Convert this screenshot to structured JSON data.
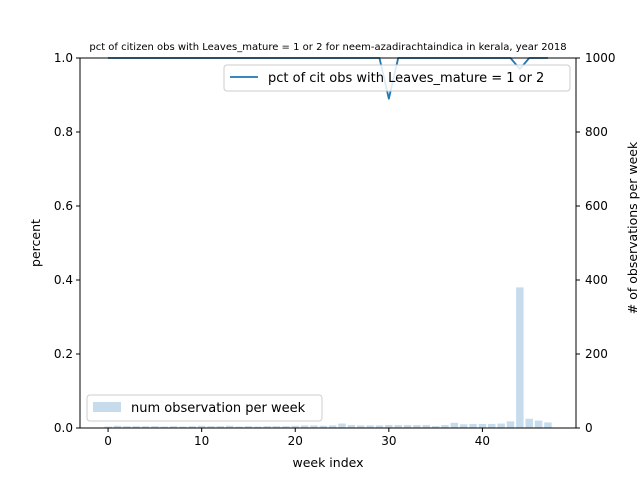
{
  "chart_data": {
    "type": "bar",
    "title": "pct of citizen obs with Leaves_mature = 1 or 2 for neem-azadirachtaindica in kerala, year 2018",
    "xlabel": "week index",
    "ylabel_left": "percent",
    "ylabel_right": "# of observations per week",
    "xlim": [
      -3,
      50
    ],
    "ylim_left": [
      0,
      1
    ],
    "ylim_right": [
      0,
      1000
    ],
    "x_ticks": [
      "0",
      "10",
      "20",
      "30",
      "40"
    ],
    "y_left_ticks": [
      "0.0",
      "0.2",
      "0.4",
      "0.6",
      "0.8",
      "1.0"
    ],
    "y_right_ticks": [
      "0",
      "200",
      "400",
      "600",
      "800",
      "1000"
    ],
    "grid": false,
    "line_legend_position": "upper-right",
    "bar_legend_position": "lower-left",
    "line_color": "#1f77b4",
    "bar_color": "#c6dcec",
    "series": [
      {
        "name": "pct of cit obs with Leaves_mature = 1 or 2",
        "type": "line",
        "axis": "left",
        "x": [
          0,
          1,
          2,
          3,
          4,
          5,
          6,
          7,
          8,
          9,
          10,
          11,
          12,
          13,
          14,
          15,
          16,
          17,
          18,
          19,
          20,
          21,
          22,
          23,
          24,
          25,
          26,
          27,
          28,
          29,
          30,
          31,
          32,
          33,
          34,
          35,
          36,
          37,
          38,
          39,
          40,
          41,
          42,
          43,
          44,
          45,
          46,
          47
        ],
        "values": [
          1,
          1,
          1,
          1,
          1,
          1,
          1,
          1,
          1,
          1,
          1,
          1,
          1,
          1,
          1,
          1,
          1,
          1,
          1,
          1,
          1,
          1,
          1,
          1,
          1,
          1,
          1,
          1,
          1,
          1,
          0.89,
          1,
          1,
          1,
          1,
          1,
          1,
          1,
          1,
          1,
          1,
          1,
          1,
          1,
          0.97,
          1,
          1,
          1
        ]
      },
      {
        "name": "num observation per week",
        "type": "bar",
        "axis": "right",
        "x": [
          0,
          1,
          2,
          3,
          4,
          5,
          6,
          7,
          8,
          9,
          10,
          11,
          12,
          13,
          14,
          15,
          16,
          17,
          18,
          19,
          20,
          21,
          22,
          23,
          24,
          25,
          26,
          27,
          28,
          29,
          30,
          31,
          32,
          33,
          34,
          35,
          36,
          37,
          38,
          39,
          40,
          41,
          42,
          43,
          44,
          45,
          46,
          47
        ],
        "values": [
          4,
          6,
          5,
          5,
          5,
          5,
          4,
          5,
          4,
          5,
          6,
          5,
          5,
          6,
          4,
          5,
          4,
          5,
          5,
          5,
          6,
          7,
          7,
          6,
          7,
          12,
          8,
          7,
          7,
          7,
          8,
          8,
          8,
          8,
          8,
          5,
          8,
          14,
          10,
          11,
          11,
          11,
          12,
          18,
          380,
          25,
          20,
          15
        ]
      }
    ]
  }
}
